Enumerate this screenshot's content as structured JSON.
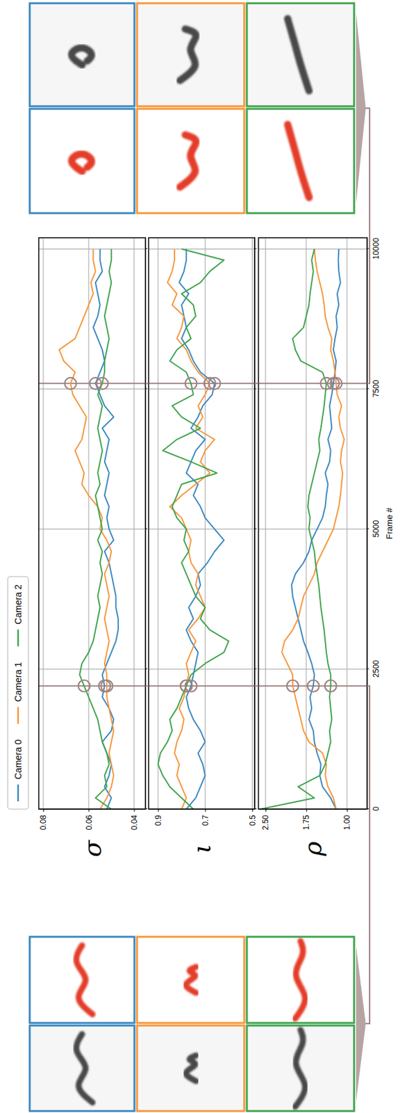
{
  "chart_data": [
    {
      "type": "line",
      "ylabel": "σ",
      "legend": "top",
      "grid": true,
      "tick_labels": "y",
      "x": [
        0,
        200,
        400,
        600,
        800,
        1000,
        1200,
        1400,
        1600,
        1800,
        2000,
        2200,
        2400,
        2600,
        2800,
        3000,
        3200,
        3400,
        3600,
        3800,
        4000,
        4200,
        4400,
        4600,
        4800,
        5000,
        5200,
        5400,
        5600,
        5800,
        6000,
        6200,
        6400,
        6600,
        6800,
        7000,
        7200,
        7400,
        7600,
        7800,
        8000,
        8200,
        8400,
        8600,
        8800,
        9000,
        9200,
        9400,
        9600,
        9800,
        10000
      ],
      "xlim": [
        0,
        10200
      ],
      "xticks": [
        0,
        2500,
        5000,
        7500,
        10000
      ],
      "ylim": [
        0.035,
        0.082
      ],
      "yticks": [
        0.08,
        0.06,
        0.04
      ],
      "highlight_frames": [
        2200,
        7600
      ],
      "series": [
        {
          "name": "Camera 0",
          "color": "#3a87c0",
          "values": [
            0.052,
            0.05,
            0.053,
            0.051,
            0.05,
            0.052,
            0.054,
            0.05,
            0.049,
            0.051,
            0.054,
            0.053,
            0.054,
            0.052,
            0.05,
            0.048,
            0.047,
            0.047,
            0.048,
            0.048,
            0.049,
            0.05,
            0.051,
            0.053,
            0.049,
            0.051,
            0.052,
            0.051,
            0.053,
            0.052,
            0.051,
            0.053,
            0.052,
            0.051,
            0.054,
            0.049,
            0.053,
            0.055,
            0.057,
            0.055,
            0.053,
            0.054,
            0.056,
            0.058,
            0.056,
            0.055,
            0.056,
            0.057,
            0.054,
            0.055,
            0.055
          ]
        },
        {
          "name": "Camera 1",
          "color": "#f7963a",
          "values": [
            0.055,
            0.052,
            0.05,
            0.049,
            0.05,
            0.051,
            0.05,
            0.049,
            0.05,
            0.051,
            0.052,
            0.052,
            0.052,
            0.053,
            0.052,
            0.051,
            0.052,
            0.053,
            0.052,
            0.051,
            0.052,
            0.053,
            0.051,
            0.05,
            0.052,
            0.055,
            0.054,
            0.056,
            0.06,
            0.063,
            0.062,
            0.064,
            0.066,
            0.063,
            0.062,
            0.061,
            0.064,
            0.067,
            0.068,
            0.066,
            0.071,
            0.073,
            0.066,
            0.064,
            0.062,
            0.06,
            0.058,
            0.059,
            0.057,
            0.058,
            0.058
          ]
        },
        {
          "name": "Camera 2",
          "color": "#3fa34d",
          "values": [
            0.05,
            0.057,
            0.052,
            0.053,
            0.051,
            0.052,
            0.054,
            0.055,
            0.056,
            0.058,
            0.06,
            0.062,
            0.064,
            0.063,
            0.06,
            0.058,
            0.057,
            0.056,
            0.055,
            0.056,
            0.055,
            0.054,
            0.055,
            0.054,
            0.056,
            0.054,
            0.055,
            0.056,
            0.057,
            0.055,
            0.056,
            0.055,
            0.054,
            0.055,
            0.056,
            0.055,
            0.054,
            0.056,
            0.054,
            0.053,
            0.053,
            0.052,
            0.051,
            0.052,
            0.053,
            0.052,
            0.051,
            0.05,
            0.051,
            0.05,
            0.05
          ]
        }
      ]
    },
    {
      "type": "line",
      "ylabel": "ι",
      "grid": true,
      "tick_labels": "y",
      "x": [
        0,
        200,
        400,
        600,
        800,
        1000,
        1200,
        1400,
        1600,
        1800,
        2000,
        2200,
        2400,
        2600,
        2800,
        3000,
        3200,
        3400,
        3600,
        3800,
        4000,
        4200,
        4400,
        4600,
        4800,
        5000,
        5200,
        5400,
        5600,
        5800,
        6000,
        6200,
        6400,
        6600,
        6800,
        7000,
        7200,
        7400,
        7600,
        7800,
        8000,
        8200,
        8400,
        8600,
        8800,
        9000,
        9200,
        9400,
        9600,
        9800,
        10000
      ],
      "xlim": [
        0,
        10200
      ],
      "xticks": [
        0,
        2500,
        5000,
        7500,
        10000
      ],
      "ylim": [
        0.49,
        0.94
      ],
      "yticks": [
        0.9,
        0.7,
        0.5
      ],
      "highlight_frames": [
        2200,
        7600
      ],
      "series": [
        {
          "color": "#3a87c0",
          "values": [
            0.78,
            0.74,
            0.72,
            0.7,
            0.71,
            0.73,
            0.7,
            0.72,
            0.75,
            0.77,
            0.78,
            0.76,
            0.75,
            0.74,
            0.73,
            0.76,
            0.78,
            0.75,
            0.77,
            0.74,
            0.72,
            0.73,
            0.69,
            0.66,
            0.62,
            0.66,
            0.7,
            0.72,
            0.75,
            0.73,
            0.78,
            0.76,
            0.74,
            0.7,
            0.76,
            0.73,
            0.71,
            0.67,
            0.66,
            0.72,
            0.75,
            0.77,
            0.8,
            0.78,
            0.79,
            0.8,
            0.77,
            0.81,
            0.79,
            0.78,
            0.78
          ]
        },
        {
          "color": "#f7963a",
          "values": [
            0.8,
            0.78,
            0.8,
            0.82,
            0.81,
            0.83,
            0.82,
            0.8,
            0.79,
            0.81,
            0.79,
            0.78,
            0.77,
            0.78,
            0.76,
            0.74,
            0.77,
            0.73,
            0.7,
            0.72,
            0.74,
            0.73,
            0.76,
            0.77,
            0.76,
            0.78,
            0.8,
            0.85,
            0.8,
            0.74,
            0.68,
            0.72,
            0.7,
            0.66,
            0.74,
            0.71,
            0.73,
            0.7,
            0.68,
            0.73,
            0.76,
            0.78,
            0.82,
            0.8,
            0.79,
            0.84,
            0.82,
            0.86,
            0.84,
            0.83,
            0.83
          ]
        },
        {
          "color": "#3fa34d",
          "values": [
            0.75,
            0.8,
            0.85,
            0.88,
            0.9,
            0.89,
            0.86,
            0.84,
            0.85,
            0.82,
            0.8,
            0.78,
            0.76,
            0.7,
            0.62,
            0.6,
            0.68,
            0.72,
            0.7,
            0.74,
            0.76,
            0.78,
            0.8,
            0.77,
            0.79,
            0.78,
            0.82,
            0.84,
            0.82,
            0.8,
            0.65,
            0.76,
            0.88,
            0.82,
            0.72,
            0.8,
            0.84,
            0.75,
            0.76,
            0.78,
            0.85,
            0.82,
            0.76,
            0.78,
            0.74,
            0.75,
            0.8,
            0.72,
            0.68,
            0.62,
            0.8
          ]
        }
      ]
    },
    {
      "type": "line",
      "ylabel": "ρ",
      "xlabel": "Frame #",
      "grid": true,
      "x": [
        0,
        200,
        400,
        600,
        800,
        1000,
        1200,
        1400,
        1600,
        1800,
        2000,
        2200,
        2400,
        2600,
        2800,
        3000,
        3200,
        3400,
        3600,
        3800,
        4000,
        4200,
        4400,
        4600,
        4800,
        5000,
        5200,
        5400,
        5600,
        5800,
        6000,
        6200,
        6400,
        6600,
        6800,
        7000,
        7200,
        7400,
        7600,
        7800,
        8000,
        8200,
        8400,
        8600,
        8800,
        9000,
        9200,
        9400,
        9600,
        9800,
        10000
      ],
      "xlim": [
        0,
        10200
      ],
      "xticks": [
        0,
        2500,
        5000,
        7500,
        10000
      ],
      "ylim": [
        0.63,
        2.63
      ],
      "yticks": [
        {
          "value": 2.5,
          "label": "2.50"
        },
        1.75,
        {
          "value": 1,
          "label": "1.00"
        }
      ],
      "highlight_frames": [
        2200,
        7600
      ],
      "series": [
        {
          "color": "#3a87c0",
          "values": [
            1.2,
            1.3,
            1.45,
            1.5,
            1.48,
            1.55,
            1.6,
            1.62,
            1.7,
            1.65,
            1.68,
            1.62,
            1.6,
            1.65,
            1.72,
            1.8,
            1.85,
            1.9,
            1.95,
            2.0,
            2.02,
            1.95,
            1.8,
            1.7,
            1.65,
            1.55,
            1.45,
            1.4,
            1.38,
            1.35,
            1.4,
            1.32,
            1.3,
            1.35,
            1.28,
            1.3,
            1.32,
            1.28,
            1.25,
            1.22,
            1.2,
            1.25,
            1.22,
            1.18,
            1.2,
            1.15,
            1.18,
            1.12,
            1.15,
            1.16,
            1.15
          ]
        },
        {
          "color": "#f7963a",
          "values": [
            1.2,
            1.25,
            1.35,
            1.4,
            1.38,
            1.45,
            1.7,
            1.8,
            1.85,
            1.9,
            1.95,
            2.0,
            2.0,
            2.1,
            2.2,
            2.15,
            2.0,
            1.9,
            1.85,
            1.8,
            1.7,
            1.6,
            1.55,
            1.45,
            1.35,
            1.25,
            1.2,
            1.15,
            1.12,
            1.1,
            1.08,
            1.12,
            1.1,
            1.05,
            1.12,
            1.15,
            1.1,
            1.18,
            1.2,
            1.22,
            1.25,
            1.3,
            1.28,
            1.35,
            1.4,
            1.42,
            1.45,
            1.5,
            1.55,
            1.58,
            1.6
          ]
        },
        {
          "color": "#3fa34d",
          "values": [
            2.6,
            1.6,
            1.9,
            1.5,
            1.4,
            1.35,
            1.3,
            1.32,
            1.28,
            1.3,
            1.32,
            1.3,
            1.3,
            1.35,
            1.38,
            1.4,
            1.42,
            1.45,
            1.48,
            1.5,
            1.52,
            1.55,
            1.58,
            1.6,
            1.65,
            1.7,
            1.68,
            1.72,
            1.7,
            1.65,
            1.6,
            1.55,
            1.5,
            1.52,
            1.48,
            1.45,
            1.42,
            1.4,
            1.38,
            1.45,
            1.85,
            1.95,
            2.0,
            1.8,
            1.75,
            1.7,
            1.68,
            1.65,
            1.62,
            1.65,
            1.6
          ]
        }
      ]
    }
  ]
}
